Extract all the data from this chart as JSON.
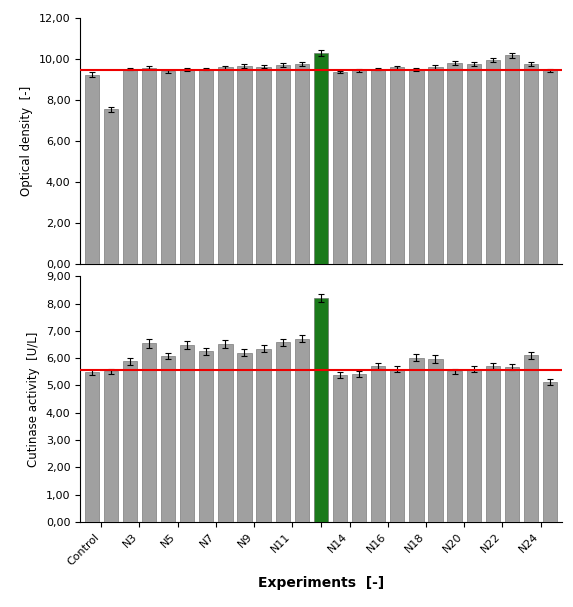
{
  "x_labels": [
    "Control",
    "N3",
    "N5",
    "N7",
    "N9",
    "N11",
    "",
    "N14",
    "N16",
    "N18",
    "N20",
    "N22",
    "N24"
  ],
  "n_bars": 25,
  "green_bar_index": 12,
  "od_values": [
    9.25,
    7.55,
    9.52,
    9.58,
    9.4,
    9.48,
    9.52,
    9.6,
    9.68,
    9.63,
    9.72,
    9.78,
    10.3,
    9.38,
    9.45,
    9.52,
    9.6,
    9.5,
    9.62,
    9.82,
    9.78,
    9.95,
    10.18,
    9.78,
    9.45
  ],
  "od_errors": [
    0.1,
    0.12,
    0.07,
    0.08,
    0.07,
    0.08,
    0.07,
    0.08,
    0.1,
    0.08,
    0.09,
    0.1,
    0.13,
    0.06,
    0.07,
    0.07,
    0.08,
    0.08,
    0.09,
    0.1,
    0.1,
    0.1,
    0.12,
    0.09,
    0.08
  ],
  "od_red_line": 9.48,
  "od_ylim": [
    0,
    12
  ],
  "od_yticks": [
    0.0,
    2.0,
    4.0,
    6.0,
    8.0,
    10.0,
    12.0
  ],
  "od_ylabel": "Optical density  [-]",
  "ca_values": [
    5.48,
    5.52,
    5.88,
    6.55,
    6.08,
    6.48,
    6.25,
    6.52,
    6.2,
    6.35,
    6.58,
    6.72,
    8.2,
    5.38,
    5.42,
    5.72,
    5.62,
    6.02,
    5.98,
    5.52,
    5.6,
    5.72,
    5.68,
    6.1,
    5.12
  ],
  "ca_errors": [
    0.1,
    0.1,
    0.14,
    0.16,
    0.12,
    0.14,
    0.13,
    0.14,
    0.12,
    0.13,
    0.13,
    0.13,
    0.15,
    0.1,
    0.1,
    0.12,
    0.11,
    0.14,
    0.14,
    0.1,
    0.11,
    0.12,
    0.11,
    0.13,
    0.1
  ],
  "ca_red_line": 5.55,
  "ca_ylim": [
    0,
    9
  ],
  "ca_yticks": [
    0.0,
    1.0,
    2.0,
    3.0,
    4.0,
    5.0,
    6.0,
    7.0,
    8.0,
    9.0
  ],
  "ca_ylabel": "Cutinase activity  [U/L]",
  "xlabel": "Experiments  [-]",
  "bar_color": "#a0a0a0",
  "green_color": "#1a7a1a",
  "red_color": "#ee0000",
  "background_color": "#ffffff",
  "tick_positions": [
    0.5,
    2.5,
    4.5,
    6.5,
    8.5,
    10.5,
    12,
    13.5,
    15.5,
    17.5,
    19.5,
    21.5,
    23.5
  ]
}
